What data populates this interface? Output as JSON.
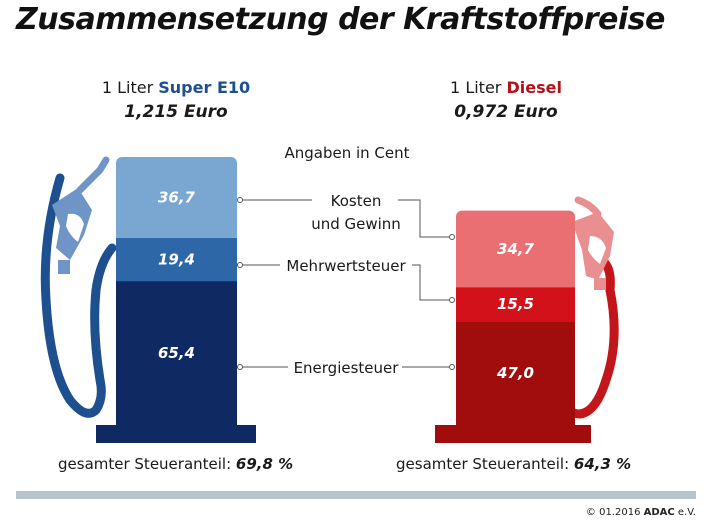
{
  "title": "Zusammensetzung der Kraftstoffpreise",
  "note": "Angaben in Cent",
  "colors": {
    "super_top": "#7aa6d2",
    "super_mid": "#2e67a8",
    "super_bottom": "#0f2a63",
    "diesel_top": "#e96f72",
    "diesel_mid": "#d2111a",
    "diesel_bottom": "#a10d0d"
  },
  "fuels": [
    {
      "prefix": "1 Liter ",
      "name": "Super E10",
      "price": "1,215 Euro",
      "tax_label": "gesamter Steueranteil: ",
      "tax_value": "69,8 %",
      "name_color": "#1e4f8f"
    },
    {
      "prefix": "1 Liter ",
      "name": "Diesel",
      "price": "0,972 Euro",
      "tax_label": "gesamter Steueranteil: ",
      "tax_value": "64,3 %",
      "name_color": "#b3121a"
    }
  ],
  "chart_data": {
    "type": "bar",
    "stacked": true,
    "title": "Zusammensetzung der Kraftstoffpreise",
    "unit": "Cent",
    "categories": [
      "Super E10",
      "Diesel"
    ],
    "series": [
      {
        "name": "Energiesteuer",
        "values": [
          65.4,
          47.0
        ],
        "labels": [
          "65,4",
          "47,0"
        ]
      },
      {
        "name": "Mehrwertsteuer",
        "values": [
          19.4,
          15.5
        ],
        "labels": [
          "19,4",
          "15,5"
        ]
      },
      {
        "name": "Kosten und Gewinn",
        "values": [
          36.7,
          34.7
        ],
        "labels": [
          "36,7",
          "34,7"
        ]
      }
    ],
    "legend_labels": [
      "Kosten",
      "und Gewinn",
      "Mehrwertsteuer",
      "Energiesteuer"
    ]
  },
  "copyright": {
    "prefix": "© 01.2016 ",
    "brand": "ADAC",
    "suffix": " e.V."
  }
}
